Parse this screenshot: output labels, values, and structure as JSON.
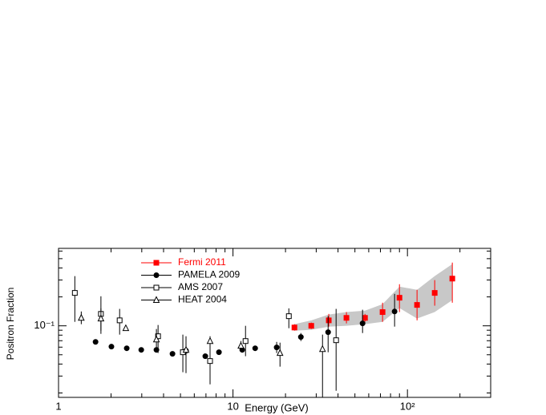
{
  "chart_data": {
    "type": "scatter",
    "xlabel": "Energy (GeV)",
    "ylabel": "Positron Fraction",
    "xscale": "log",
    "yscale": "log",
    "xlim": [
      1,
      300
    ],
    "ylim": [
      0.018,
      0.64
    ],
    "xticks": [
      1,
      10,
      {
        "value": 100,
        "label": "10²"
      }
    ],
    "yticks": [
      {
        "value": 0.1,
        "label": "10⁻¹"
      }
    ],
    "xminorticks": [
      2,
      3,
      4,
      5,
      6,
      7,
      8,
      9,
      20,
      30,
      40,
      50,
      60,
      70,
      80,
      90,
      200,
      300
    ],
    "yminorticks": [
      0.02,
      0.03,
      0.04,
      0.05,
      0.06,
      0.07,
      0.08,
      0.09,
      0.2,
      0.3,
      0.4,
      0.5,
      0.6
    ],
    "legend": "upper left",
    "band": {
      "color": "#c8c8c8",
      "x": [
        22.5,
        28.1,
        35.4,
        44.7,
        57.1,
        72.0,
        90.0,
        113.5,
        143.3,
        180.8
      ],
      "upper": [
        0.104,
        0.114,
        0.131,
        0.139,
        0.144,
        0.168,
        0.256,
        0.237,
        0.329,
        0.439
      ],
      "lower": [
        0.089,
        0.091,
        0.098,
        0.1,
        0.104,
        0.11,
        0.153,
        0.119,
        0.139,
        0.185
      ]
    },
    "series": [
      {
        "name": "Fermi 2011",
        "color": "#ff0000",
        "marker": "square",
        "x": [
          22.5,
          28.1,
          35.4,
          44.7,
          57.1,
          72.0,
          90.0,
          113.5,
          143.3,
          180.8
        ],
        "values": [
          0.096,
          0.1,
          0.114,
          0.121,
          0.121,
          0.139,
          0.196,
          0.165,
          0.22,
          0.31
        ],
        "y_low": [
          0.0891,
          0.0926,
          0.0981,
          0.106,
          0.11,
          0.11,
          0.139,
          0.114,
          0.162,
          0.174
        ],
        "y_high": [
          0.104,
          0.108,
          0.133,
          0.139,
          0.133,
          0.174,
          0.271,
          0.237,
          0.299,
          0.455
        ]
      },
      {
        "name": "PAMELA 2009",
        "color": "#000000",
        "marker": "circle",
        "x": [
          1.63,
          2.01,
          2.46,
          2.98,
          3.64,
          4.5,
          5.38,
          6.94,
          8.31,
          11.3,
          13.4,
          17.8,
          24.5,
          35.1,
          55.3,
          84.4
        ],
        "values": [
          0.068,
          0.0607,
          0.0584,
          0.0562,
          0.0562,
          0.0511,
          0.0551,
          0.0483,
          0.0531,
          0.0562,
          0.0584,
          0.0596,
          0.0765,
          0.0858,
          0.106,
          0.141
        ],
        "y_low": [
          null,
          null,
          null,
          null,
          null,
          null,
          0.0322,
          null,
          null,
          null,
          null,
          0.0521,
          0.0694,
          0.0531,
          0.0841,
          0.0981
        ],
        "y_high": [
          null,
          null,
          null,
          null,
          null,
          null,
          0.0779,
          null,
          null,
          null,
          null,
          0.068,
          0.0841,
          0.126,
          0.147,
          0.215
        ]
      },
      {
        "name": "AMS 2007",
        "color": "#000000",
        "marker": "square-open",
        "x": [
          1.24,
          1.75,
          2.24,
          3.72,
          5.16,
          7.39,
          11.8,
          20.9,
          39.0
        ],
        "values": [
          0.22,
          0.133,
          0.114,
          0.0779,
          0.0531,
          0.043,
          0.0694,
          0.126,
          0.0708
        ],
        "y_low": [
          0.11,
          0.0825,
          0.081,
          0.0521,
          0.0329,
          0.0246,
          0.0483,
          0.0944,
          0.0211
        ],
        "y_high": [
          0.329,
          0.203,
          0.15,
          0.102,
          0.081,
          0.0708,
          0.1,
          0.152,
          0.15
        ]
      },
      {
        "name": "HEAT 2004",
        "color": "#000000",
        "marker": "triangle-open",
        "x": [
          1.35,
          1.75,
          2.43,
          3.64,
          5.38,
          7.39,
          11.1,
          18.6,
          32.6
        ],
        "values": [
          0.121,
          0.119,
          0.0944,
          0.0721,
          0.0562,
          0.0694,
          0.0619,
          0.0521,
          0.0573
        ],
        "y_low": [
          0.104,
          0.0891,
          null,
          0.0562,
          null,
          0.0596,
          0.0551,
          0.0376,
          0.0181
        ],
        "y_high": [
          0.141,
          0.152,
          null,
          0.0926,
          null,
          0.0779,
          0.0694,
          0.0668,
          0.081
        ]
      }
    ]
  }
}
